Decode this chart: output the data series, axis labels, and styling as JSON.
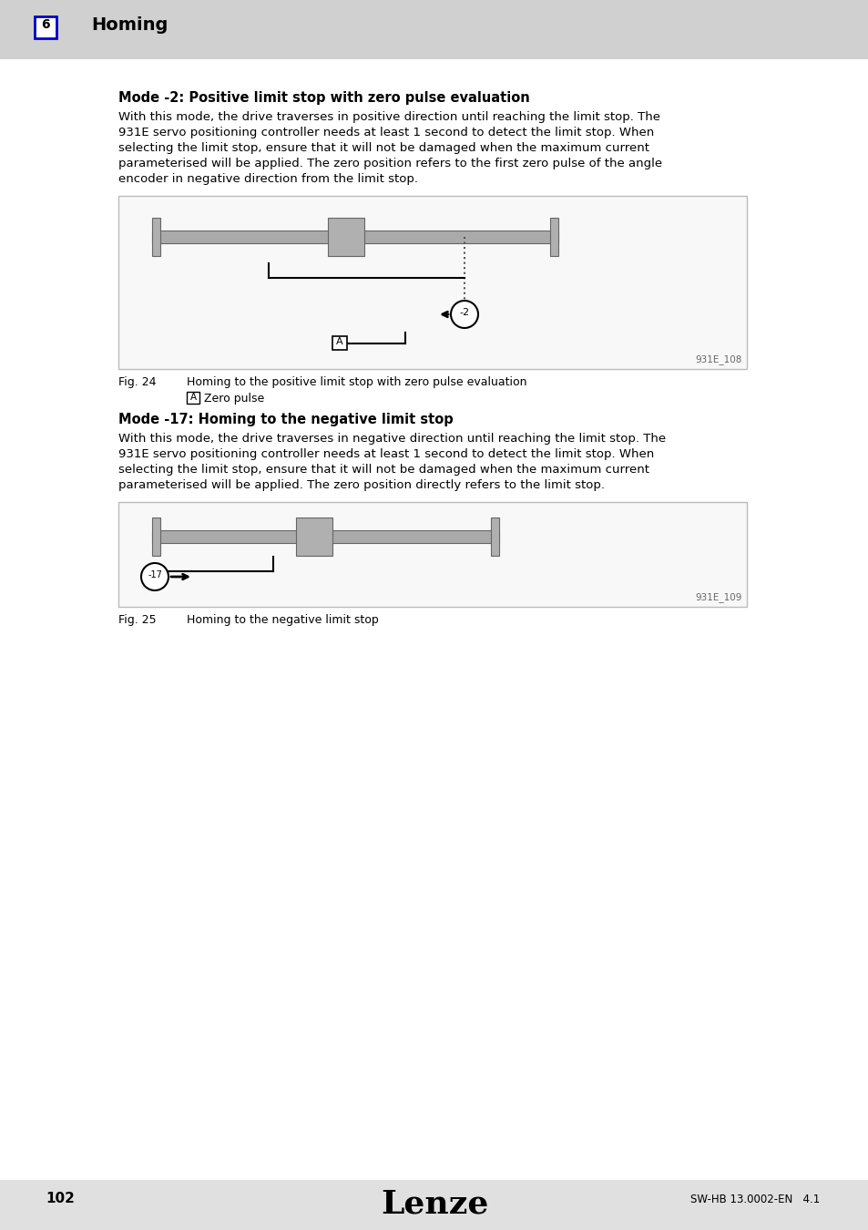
{
  "page_bg": "#e0e0e0",
  "content_bg": "#ffffff",
  "header_bg": "#d0d0d0",
  "header_number": "6",
  "header_number_box_color": "#0000cc",
  "header_title": "Homing",
  "section1_title": "Mode -2: Positive limit stop with zero pulse evaluation",
  "section1_body_lines": [
    "With this mode, the drive traverses in positive direction until reaching the limit stop. The",
    "931E servo positioning controller needs at least 1 second to detect the limit stop. When",
    "selecting the limit stop, ensure that it will not be damaged when the maximum current",
    "parameterised will be applied. The zero position refers to the first zero pulse of the angle",
    "encoder in negative direction from the limit stop."
  ],
  "fig1_label": "Fig. 24",
  "fig1_caption": "Homing to the positive limit stop with zero pulse evaluation",
  "fig1_sublabel_letter": "A",
  "fig1_sublabel_text": "Zero pulse",
  "fig1_code": "931E_108",
  "section2_title": "Mode -17: Homing to the negative limit stop",
  "section2_body_lines": [
    "With this mode, the drive traverses in negative direction until reaching the limit stop. The",
    "931E servo positioning controller needs at least 1 second to detect the limit stop. When",
    "selecting the limit stop, ensure that it will not be damaged when the maximum current",
    "parameterised will be applied. The zero position directly refers to the limit stop."
  ],
  "fig2_label": "Fig. 25",
  "fig2_caption": "Homing to the negative limit stop",
  "fig2_code": "931E_109",
  "footer_page": "102",
  "footer_logo": "Lenze",
  "footer_right": "SW-HB 13.0002-EN   4.1",
  "diagram_border": "#bbbbbb",
  "rail_color": "#aaaaaa",
  "block_color": "#b0b0b0",
  "text_color": "#000000"
}
